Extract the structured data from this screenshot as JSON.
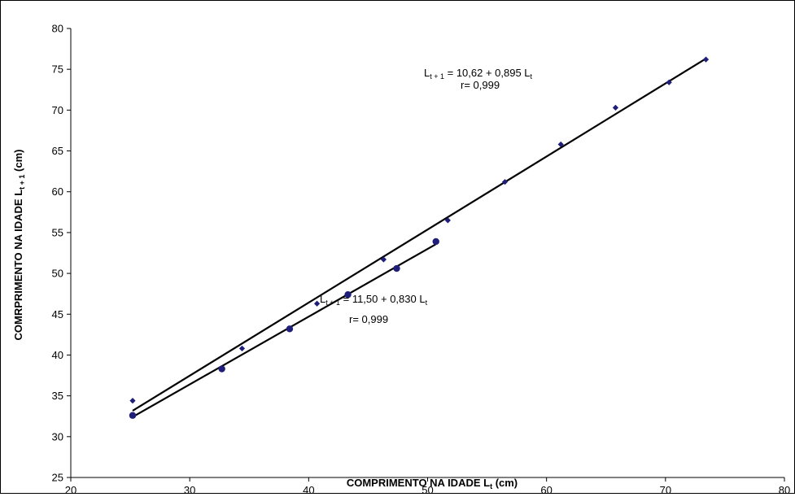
{
  "chart_data": {
    "type": "scatter",
    "xlabel": {
      "main": "COMPRIMENTO NA IDADE L",
      "sub": "t",
      "suffix": " (cm)"
    },
    "ylabel": {
      "main": "COMRPRIMENTO NA IDADE  L",
      "sub": "t + 1",
      "suffix": " (cm)"
    },
    "xlim": [
      20,
      80
    ],
    "ylim": [
      25,
      80
    ],
    "xticks": [
      20,
      30,
      40,
      50,
      60,
      70,
      80
    ],
    "yticks": [
      25,
      30,
      35,
      40,
      45,
      50,
      55,
      60,
      65,
      70,
      75,
      80
    ],
    "grid": false,
    "series": [
      {
        "marker": "diamond",
        "color": "#1f1f7a",
        "x": [
          25.2,
          34.4,
          40.7,
          46.3,
          51.7,
          56.5,
          61.2,
          65.8,
          70.3,
          73.4
        ],
        "y": [
          34.4,
          40.8,
          46.3,
          51.7,
          56.5,
          61.2,
          65.8,
          70.3,
          73.4,
          76.2
        ],
        "fit": {
          "intercept": 10.62,
          "slope": 0.895,
          "x_range": [
            25.2,
            73.4
          ]
        }
      },
      {
        "marker": "circle",
        "color": "#1f1f7a",
        "x": [
          25.2,
          32.7,
          38.4,
          43.3,
          47.4,
          50.7
        ],
        "y": [
          32.6,
          38.3,
          43.2,
          47.4,
          50.6,
          53.9
        ],
        "fit": {
          "intercept": 11.5,
          "slope": 0.83,
          "x_range": [
            25.2,
            50.7
          ]
        }
      }
    ],
    "annotations": [
      {
        "lhs": "L",
        "lhs_sub": "t + 1",
        "rhs": " =  10,62 + 0,895 L",
        "rhs_sub": "t",
        "r": "r= 0,999"
      },
      {
        "lhs": "L",
        "lhs_sub": "t + 1",
        "rhs": " = 11,50 + 0,830 L",
        "rhs_sub": "t",
        "r": "r= 0,999"
      }
    ]
  }
}
